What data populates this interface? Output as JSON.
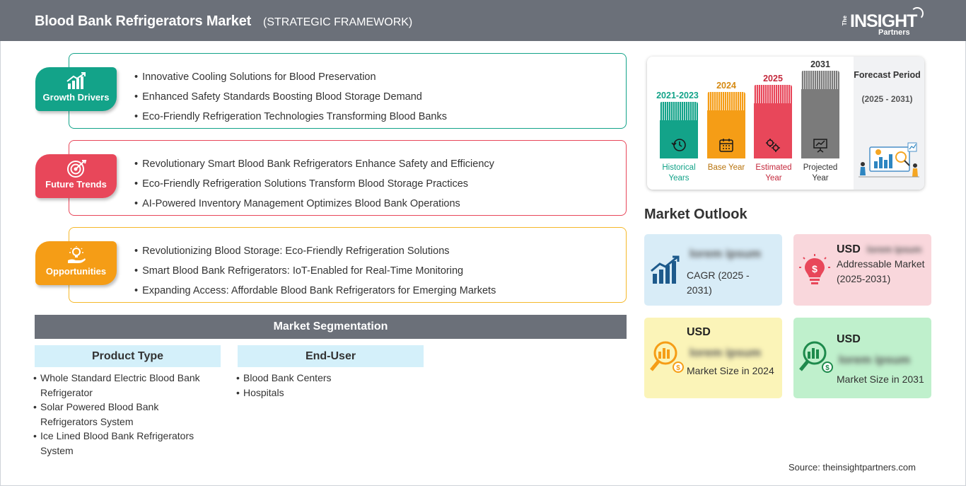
{
  "header": {
    "title": "Blood Bank Refrigerators Market",
    "subtitle": "(STRATEGIC FRAMEWORK)",
    "logo": {
      "the": "The",
      "insight": "INSIGHT",
      "partners": "Partners"
    }
  },
  "framework": [
    {
      "label": "Growth Drivers",
      "color": "#13a389",
      "items": [
        "Innovative Cooling Solutions for Blood Preservation",
        "Enhanced Safety Standards Boosting Blood Storage Demand",
        "Eco-Friendly Refrigeration Technologies Transforming Blood Banks"
      ]
    },
    {
      "label": "Future Trends",
      "color": "#e8475a",
      "items": [
        "Revolutionary Smart Blood Bank Refrigerators Enhance Safety and Efficiency",
        "Eco-Friendly Refrigeration Solutions Transform Blood Storage Practices",
        "AI-Powered Inventory Management Optimizes Blood Bank Operations"
      ]
    },
    {
      "label": "Opportunities",
      "color": "#f59d16",
      "items": [
        "Revolutionizing Blood Storage: Eco-Friendly Refrigeration Solutions",
        "Smart Blood Bank Refrigerators: IoT-Enabled for Real-Time Monitoring",
        "Expanding Access: Affordable Blood Bank Refrigerators for Emerging Markets"
      ]
    }
  ],
  "segmentation": {
    "title": "Market Segmentation",
    "columns": [
      {
        "heading": "Product Type",
        "items": [
          "Whole Standard Electric Blood Bank Refrigerator",
          "Solar Powered Blood Bank Refrigerators System",
          "Ice Lined Blood Bank Refrigerators System"
        ]
      },
      {
        "heading": "End-User",
        "items": [
          "Blood Bank Centers",
          "Hospitals"
        ]
      }
    ]
  },
  "forecast": {
    "title": "Forecast Period",
    "range": "(2025 - 2031)",
    "bars": [
      {
        "year": "2021-2023",
        "label": "Historical Years",
        "color": "#13a389",
        "icon": "history-icon"
      },
      {
        "year": "2024",
        "label": "Base Year",
        "color": "#f59d16",
        "icon": "calendar-icon"
      },
      {
        "year": "2025",
        "label": "Estimated Year",
        "color": "#e8475a",
        "icon": "gears-icon"
      },
      {
        "year": "2031",
        "label": "Projected Year",
        "color": "#7b7b7b",
        "icon": "presentation-icon"
      }
    ]
  },
  "outlook": {
    "title": "Market Outlook",
    "cards": [
      {
        "prefix": "",
        "value": "lorem ipsum",
        "label": "CAGR (2025 - 2031)",
        "bg": "#d8ecf7",
        "accent": "#1d5a8c",
        "icon": "growth-chart-icon"
      },
      {
        "prefix": "USD",
        "value": "lorem ipsum",
        "label": "Addressable Market (2025-2031)",
        "bg": "#f9d7dc",
        "accent": "#e8475a",
        "icon": "lightbulb-dollar-icon"
      },
      {
        "prefix": "USD",
        "value": "lorem ipsum",
        "label": "Market Size in 2024",
        "bg": "#fbf4b8",
        "accent": "#f59d16",
        "icon": "money-search-icon"
      },
      {
        "prefix": "USD",
        "value": "lorem ipsum",
        "label": "Market Size in 2031",
        "bg": "#bff0cc",
        "accent": "#1e8a4c",
        "icon": "money-search-icon"
      }
    ]
  },
  "source": "Source: theinsightpartners.com"
}
